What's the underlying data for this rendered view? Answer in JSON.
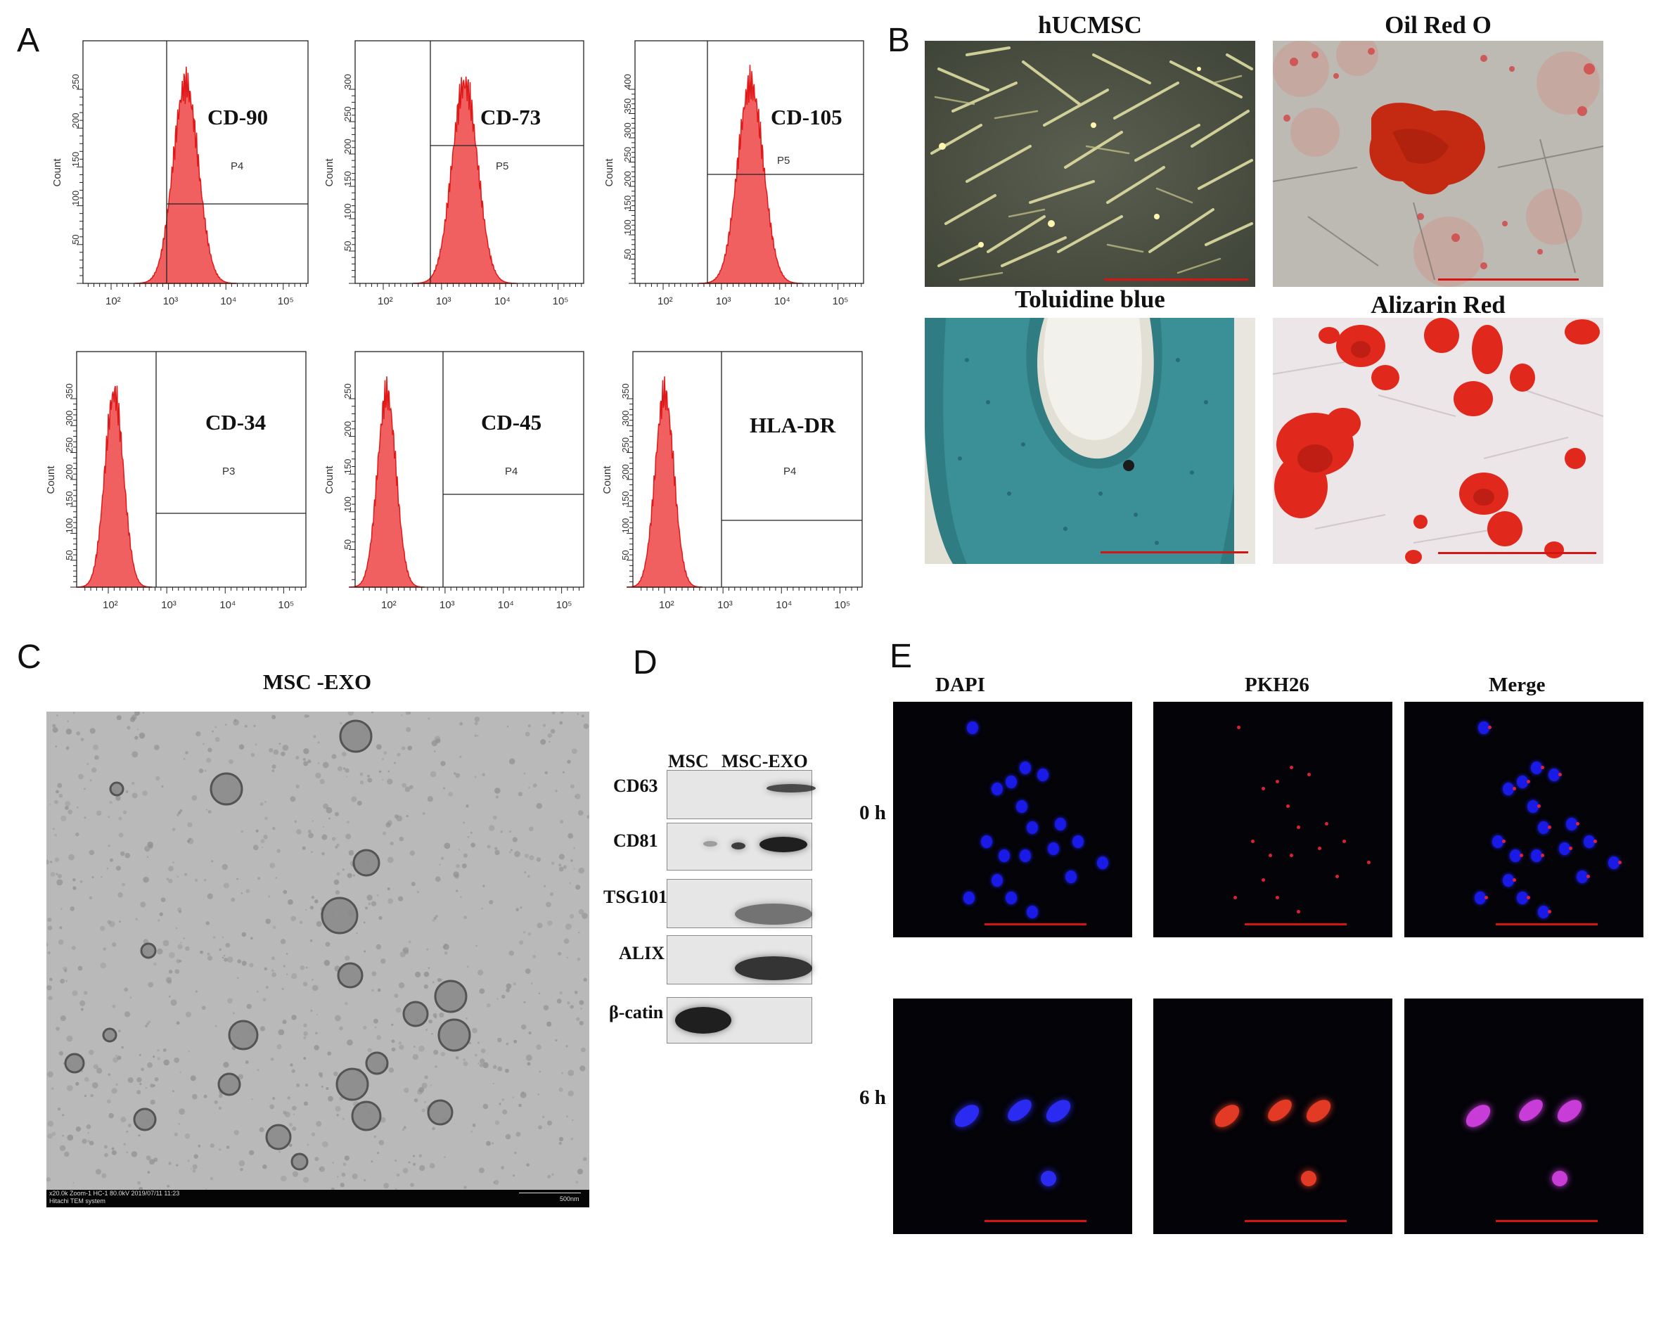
{
  "panels": {
    "A": "A",
    "B": "B",
    "C": "C",
    "D": "D",
    "E": "E"
  },
  "flow": {
    "y_axis_label": "Count",
    "x_ticks": [
      "10²",
      "10³",
      "10⁴",
      "10⁵"
    ],
    "histograms": [
      {
        "marker": "CD-90",
        "gate": "P4",
        "y_ticks": [
          "50",
          "100",
          "150",
          "200",
          "250"
        ],
        "peak_log10": 3.3
      },
      {
        "marker": "CD-73",
        "gate": "P5",
        "y_ticks": [
          "50",
          "100",
          "150",
          "200",
          "250",
          "300"
        ],
        "peak_log10": 3.4
      },
      {
        "marker": "CD-105",
        "gate": "P5",
        "y_ticks": [
          "50",
          "100",
          "150",
          "200",
          "250",
          "300",
          "350",
          "400"
        ],
        "peak_log10": 3.5
      },
      {
        "marker": "CD-34",
        "gate": "P3",
        "y_ticks": [
          "50",
          "100",
          "150",
          "200",
          "250",
          "300",
          "350"
        ],
        "peak_log10": 2.1
      },
      {
        "marker": "CD-45",
        "gate": "P4",
        "y_ticks": [
          "50",
          "100",
          "150",
          "200",
          "250"
        ],
        "peak_log10": 2.0
      },
      {
        "marker": "HLA-DR",
        "gate": "P4",
        "y_ticks": [
          "50",
          "100",
          "150",
          "200",
          "250",
          "300",
          "350"
        ],
        "peak_log10": 2.0
      }
    ]
  },
  "staining": {
    "titles": [
      "hUCMSC",
      "Oil Red O",
      "Toluidine blue",
      "Alizarin Red"
    ]
  },
  "tem": {
    "title": "MSC -EXO",
    "footer_left_1": "x20.0k Zoom-1 HC-1 80.0kV 2019/07/11 11:23",
    "footer_left_2": "Hitachi TEM system",
    "footer_right": "500nm"
  },
  "western": {
    "columns": [
      "MSC",
      "MSC-EXO"
    ],
    "rows": [
      "CD63",
      "CD81",
      "TSG101",
      "ALIX",
      "β-catin"
    ]
  },
  "fluorescence": {
    "columns": [
      "DAPI",
      "PKH26",
      "Merge"
    ],
    "rows": [
      "0 h",
      "6 h"
    ]
  },
  "colors": {
    "histogram_fill": "#f06060",
    "histogram_stroke": "#e01818",
    "scale_bar": "#d51414"
  }
}
